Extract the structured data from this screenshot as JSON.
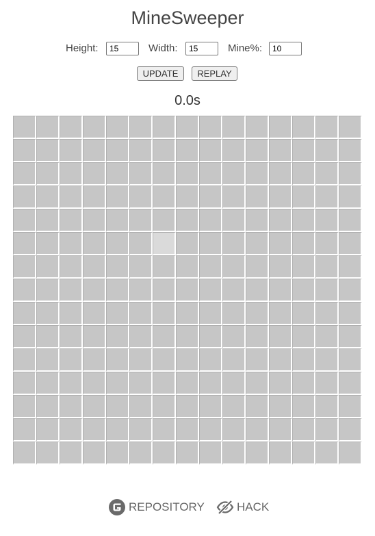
{
  "title": "MineSweeper",
  "settings": {
    "height_label": "Height:",
    "height_value": "15",
    "width_label": "Width:",
    "width_value": "15",
    "mine_label": "Mine%:",
    "mine_value": "10"
  },
  "buttons": {
    "update": "UPDATE",
    "replay": "REPLAY"
  },
  "timer": "0.0s",
  "board": {
    "rows": 15,
    "cols": 15,
    "highlighted_cell": {
      "row": 5,
      "col": 6
    },
    "cell_color": "#c6c6c6",
    "highlight_color": "#dadada"
  },
  "footer": {
    "repository_label": "REPOSITORY",
    "repository_icon": "gitee-icon",
    "hack_label": "HACK",
    "hack_icon": "eye-off-icon"
  }
}
